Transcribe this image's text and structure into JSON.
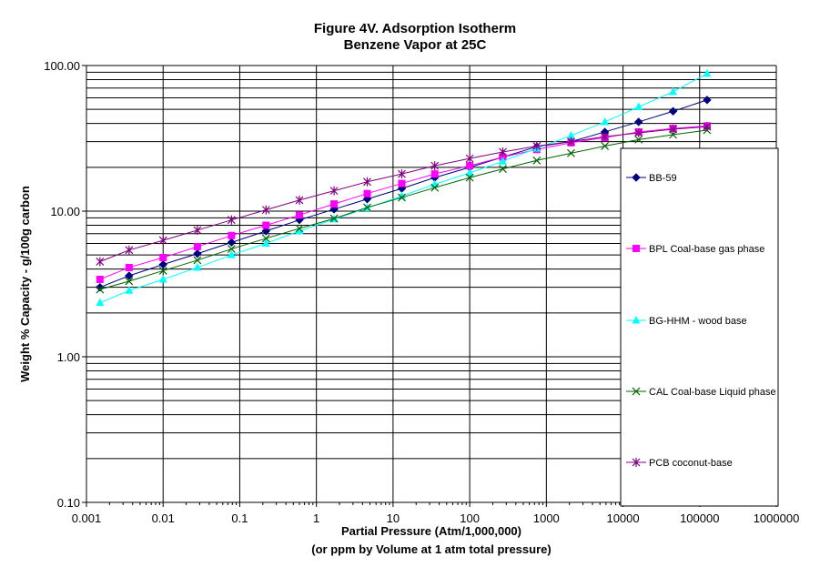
{
  "chart_data": {
    "type": "line",
    "title": "Figure 4V. Adsorption Isotherm",
    "subtitle": "Benzene Vapor at 25C",
    "xlabel": "Partial Pressure (Atm/1,000,000)",
    "xlabel2": "(or ppm by Volume at 1 atm total pressure)",
    "ylabel": "Weight % Capacity - g/100g carbon",
    "x_scale": "log",
    "y_scale": "log",
    "xlim": [
      0.001,
      1000000
    ],
    "ylim": [
      0.1,
      100
    ],
    "x_ticks": [
      {
        "value": 0.001,
        "label": "0.001"
      },
      {
        "value": 0.01,
        "label": "0.01"
      },
      {
        "value": 0.1,
        "label": "0.1"
      },
      {
        "value": 1,
        "label": "1"
      },
      {
        "value": 10,
        "label": "10"
      },
      {
        "value": 100,
        "label": "100"
      },
      {
        "value": 1000,
        "label": "1000"
      },
      {
        "value": 10000,
        "label": "10000"
      },
      {
        "value": 100000,
        "label": "100000"
      },
      {
        "value": 1000000,
        "label": "1000000"
      }
    ],
    "y_ticks": [
      {
        "value": 0.1,
        "label": "0.10"
      },
      {
        "value": 1,
        "label": "1.00"
      },
      {
        "value": 10,
        "label": "10.00"
      },
      {
        "value": 100,
        "label": "100.00"
      }
    ],
    "grid": true,
    "legend_position": "right",
    "series": [
      {
        "name": "BB-59",
        "color": "#000080",
        "marker": "diamond",
        "x": [
          0.0015,
          0.0036,
          0.01,
          0.028,
          0.078,
          0.22,
          0.6,
          1.7,
          4.6,
          13,
          35,
          100,
          270,
          750,
          2100,
          5800,
          16000,
          45000,
          125000
        ],
        "y": [
          3.0,
          3.6,
          4.3,
          5.1,
          6.1,
          7.3,
          8.7,
          10.3,
          12.1,
          14.3,
          17.0,
          20.0,
          23.5,
          27.7,
          30.0,
          35.0,
          41.0,
          48.5,
          58.0
        ]
      },
      {
        "name": "BPL Coal-base gas phase",
        "color": "#FF00FF",
        "marker": "square",
        "x": [
          0.0015,
          0.0036,
          0.01,
          0.028,
          0.078,
          0.22,
          0.6,
          1.7,
          4.6,
          13,
          35,
          100,
          270,
          750,
          2100,
          5800,
          16000,
          45000,
          125000
        ],
        "y": [
          3.4,
          4.1,
          4.8,
          5.7,
          6.8,
          8.0,
          9.4,
          11.2,
          13.2,
          15.5,
          18.0,
          20.5,
          23.5,
          26.5,
          29.5,
          32.0,
          35.0,
          37.0,
          38.5
        ]
      },
      {
        "name": "BG-HHM - wood base",
        "color": "#00FFFF",
        "marker": "triangle",
        "x": [
          0.0015,
          0.0036,
          0.01,
          0.028,
          0.078,
          0.22,
          0.6,
          1.7,
          4.6,
          13,
          35,
          100,
          270,
          750,
          2100,
          5800,
          16000,
          45000,
          125000
        ],
        "y": [
          2.35,
          2.85,
          3.4,
          4.1,
          5.0,
          6.0,
          7.3,
          8.8,
          10.5,
          12.7,
          15.3,
          18.3,
          22.0,
          27.0,
          33.0,
          41.0,
          52.0,
          66.0,
          88.0
        ]
      },
      {
        "name": "CAL Coal-base Liquid phase",
        "color": "#006400",
        "marker": "x",
        "x": [
          0.0015,
          0.0036,
          0.01,
          0.028,
          0.078,
          0.22,
          0.6,
          1.7,
          4.6,
          13,
          35,
          100,
          270,
          750,
          2100,
          5800,
          16000,
          45000,
          125000
        ],
        "y": [
          2.9,
          3.3,
          3.9,
          4.6,
          5.5,
          6.5,
          7.6,
          8.9,
          10.6,
          12.4,
          14.5,
          17.0,
          19.5,
          22.3,
          25.0,
          28.0,
          31.0,
          33.5,
          36.0
        ]
      },
      {
        "name": "PCB coconut-base",
        "color": "#800080",
        "marker": "star",
        "x": [
          0.0015,
          0.0036,
          0.01,
          0.028,
          0.078,
          0.22,
          0.6,
          1.7,
          4.6,
          13,
          35,
          100,
          270,
          750,
          2100,
          5800,
          16000,
          45000,
          125000
        ],
        "y": [
          4.5,
          5.4,
          6.3,
          7.4,
          8.7,
          10.2,
          11.9,
          13.8,
          15.9,
          18.0,
          20.5,
          23.0,
          25.5,
          28.0,
          30.0,
          32.5,
          34.5,
          36.5,
          38.0
        ]
      }
    ]
  }
}
